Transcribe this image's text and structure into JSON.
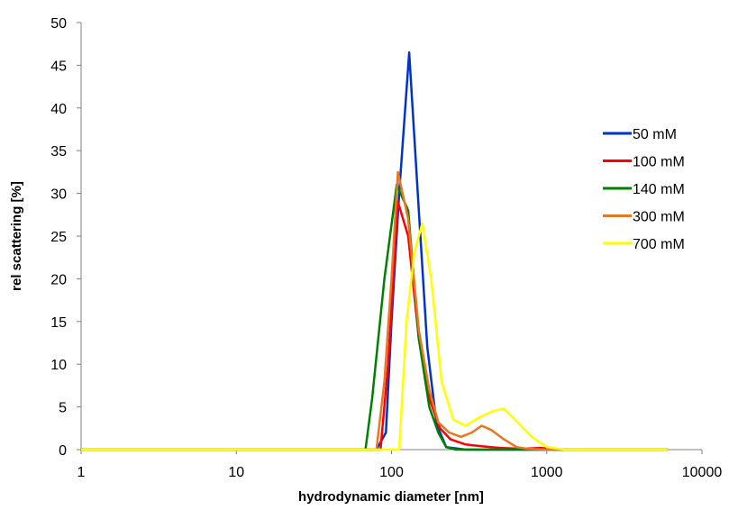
{
  "chart_data": {
    "type": "line",
    "title": "",
    "xlabel": "hydrodynamic diameter [nm]",
    "ylabel": "rel scattering [%]",
    "x_scale": "log",
    "xlim": [
      1,
      10000
    ],
    "ylim": [
      0,
      50
    ],
    "x_ticks": [
      1,
      10,
      100,
      1000,
      10000
    ],
    "x_tick_labels": [
      "1",
      "10",
      "100",
      "1000",
      "10000"
    ],
    "y_ticks": [
      0,
      5,
      10,
      15,
      20,
      25,
      30,
      35,
      40,
      45,
      50
    ],
    "y_tick_labels": [
      "0",
      "5",
      "10",
      "15",
      "20",
      "25",
      "30",
      "35",
      "40",
      "45",
      "50"
    ],
    "grid": false,
    "legend_position": "right",
    "series": [
      {
        "name": "50 mM",
        "color": "#0033cc",
        "points": [
          [
            1,
            0
          ],
          [
            80,
            0
          ],
          [
            92,
            2
          ],
          [
            100,
            15
          ],
          [
            112,
            30
          ],
          [
            130,
            46.5
          ],
          [
            150,
            28
          ],
          [
            170,
            12
          ],
          [
            195,
            3
          ],
          [
            225,
            0.3
          ],
          [
            300,
            0
          ],
          [
            6000,
            0
          ]
        ]
      },
      {
        "name": "100 mM",
        "color": "#ff0000",
        "points": [
          [
            1,
            0
          ],
          [
            85,
            0
          ],
          [
            95,
            10
          ],
          [
            110,
            29
          ],
          [
            128,
            25
          ],
          [
            150,
            13
          ],
          [
            175,
            6
          ],
          [
            205,
            2.5
          ],
          [
            240,
            1.2
          ],
          [
            300,
            0.6
          ],
          [
            380,
            0.4
          ],
          [
            500,
            0.2
          ],
          [
            700,
            0.1
          ],
          [
            900,
            0.2
          ],
          [
            1100,
            0.1
          ],
          [
            1400,
            0
          ],
          [
            6000,
            0
          ]
        ]
      },
      {
        "name": "140 mM",
        "color": "#008000",
        "points": [
          [
            1,
            0
          ],
          [
            68,
            0
          ],
          [
            75,
            6
          ],
          [
            90,
            20
          ],
          [
            108,
            31
          ],
          [
            128,
            28
          ],
          [
            150,
            13
          ],
          [
            175,
            5
          ],
          [
            200,
            2
          ],
          [
            225,
            0.3
          ],
          [
            260,
            0
          ],
          [
            6000,
            0
          ]
        ]
      },
      {
        "name": "300 mM",
        "color": "#e87722",
        "points": [
          [
            1,
            0
          ],
          [
            80,
            0
          ],
          [
            90,
            8
          ],
          [
            100,
            20
          ],
          [
            110,
            32.5
          ],
          [
            128,
            27
          ],
          [
            150,
            14
          ],
          [
            175,
            7
          ],
          [
            200,
            3.2
          ],
          [
            235,
            2
          ],
          [
            280,
            1.5
          ],
          [
            330,
            2
          ],
          [
            380,
            2.8
          ],
          [
            440,
            2.3
          ],
          [
            530,
            1.2
          ],
          [
            640,
            0.3
          ],
          [
            750,
            0.1
          ],
          [
            1000,
            0
          ],
          [
            6000,
            0
          ]
        ]
      },
      {
        "name": "700 mM",
        "color": "#ffff00",
        "points": [
          [
            1,
            0
          ],
          [
            112,
            0
          ],
          [
            125,
            15
          ],
          [
            140,
            23
          ],
          [
            158,
            26.5
          ],
          [
            180,
            20
          ],
          [
            210,
            8
          ],
          [
            250,
            3.5
          ],
          [
            300,
            2.8
          ],
          [
            370,
            3.8
          ],
          [
            450,
            4.5
          ],
          [
            530,
            4.8
          ],
          [
            650,
            3.2
          ],
          [
            800,
            1.5
          ],
          [
            1000,
            0.3
          ],
          [
            1300,
            0
          ],
          [
            6000,
            0
          ]
        ]
      }
    ]
  }
}
